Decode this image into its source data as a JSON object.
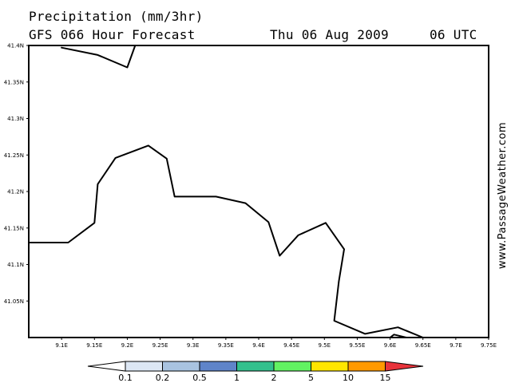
{
  "header": {
    "title": "Precipitation (mm/3hr)",
    "forecast": "GFS 066 Hour Forecast",
    "valid_date": "Thu 06 Aug 2009",
    "valid_time": "06 UTC"
  },
  "watermark": "www.PassageWeather.com",
  "map": {
    "lon_range": [
      9.05,
      9.75
    ],
    "lat_range": [
      41.0,
      41.4
    ],
    "lon_ticks": [
      "9.1E",
      "9.15E",
      "9.2E",
      "9.25E",
      "9.3E",
      "9.35E",
      "9.4E",
      "9.45E",
      "9.5E",
      "9.55E",
      "9.6E",
      "9.65E",
      "9.7E",
      "9.75E"
    ],
    "lat_ticks": [
      "41.4N",
      "41.35N",
      "41.3N",
      "41.25N",
      "41.2N",
      "41.15N",
      "41.1N",
      "41.05N"
    ],
    "coastlines": [
      [
        [
          9.1,
          41.397
        ],
        [
          9.155,
          41.387
        ],
        [
          9.2,
          41.37
        ],
        [
          9.212,
          41.4
        ]
      ],
      [
        [
          9.05,
          41.13
        ],
        [
          9.11,
          41.13
        ],
        [
          9.15,
          41.157
        ],
        [
          9.155,
          41.21
        ],
        [
          9.182,
          41.246
        ],
        [
          9.232,
          41.263
        ],
        [
          9.26,
          41.245
        ],
        [
          9.272,
          41.193
        ],
        [
          9.335,
          41.193
        ],
        [
          9.38,
          41.184
        ],
        [
          9.415,
          41.158
        ],
        [
          9.432,
          41.112
        ],
        [
          9.46,
          41.14
        ],
        [
          9.502,
          41.157
        ],
        [
          9.53,
          41.121
        ],
        [
          9.522,
          41.077
        ],
        [
          9.515,
          41.023
        ],
        [
          9.562,
          41.005
        ],
        [
          9.612,
          41.014
        ],
        [
          9.65,
          41.0
        ]
      ],
      [
        [
          9.6,
          41.0
        ],
        [
          9.606,
          41.004
        ],
        [
          9.625,
          41.0
        ]
      ]
    ]
  },
  "legend": {
    "labels": [
      "0.1",
      "0.2",
      "0.5",
      "1",
      "2",
      "5",
      "10",
      "15"
    ],
    "colors": [
      "#ffffff",
      "#dde7f4",
      "#a9c3e0",
      "#5f84c9",
      "#33c08d",
      "#62f262",
      "#ffe600",
      "#ff9900",
      "#e8333b"
    ]
  }
}
